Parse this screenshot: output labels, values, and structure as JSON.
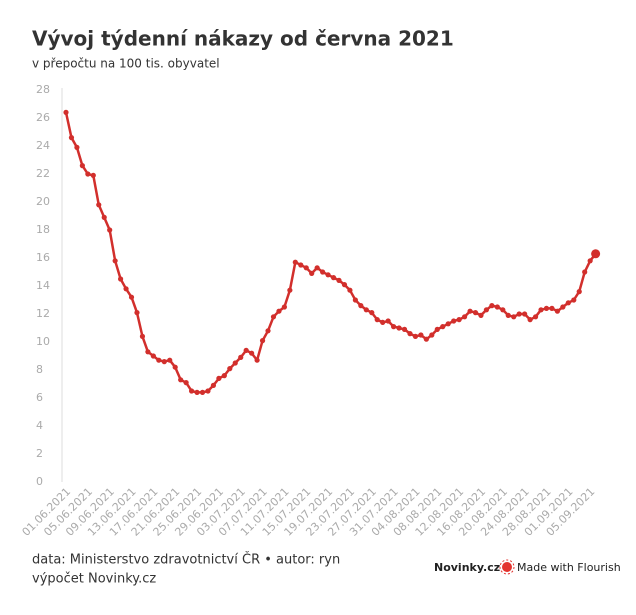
{
  "chart_data": {
    "type": "line",
    "title": "Vývoj týdenní nákazy od června 2021",
    "subtitle": "v přepočtu na 100 tis. obyvatel",
    "categories": [
      "01.06.2021",
      null,
      null,
      null,
      "05.06.2021",
      null,
      null,
      null,
      "09.06.2021",
      null,
      null,
      null,
      "13.06.2021",
      null,
      null,
      null,
      "17.06.2021",
      null,
      null,
      null,
      "21.06.2021",
      null,
      null,
      null,
      "25.06.2021",
      null,
      null,
      null,
      "29.06.2021",
      null,
      null,
      null,
      "03.07.2021",
      null,
      null,
      null,
      "07.07.2021",
      null,
      null,
      null,
      "11.07.2021",
      null,
      null,
      null,
      "15.07.2021",
      null,
      null,
      null,
      "19.07.2021",
      null,
      null,
      null,
      "23.07.2021",
      null,
      null,
      null,
      "27.07.2021",
      null,
      null,
      null,
      "31.07.2021",
      null,
      null,
      null,
      "04.08.2021",
      null,
      null,
      null,
      "08.08.2021",
      null,
      null,
      null,
      "12.08.2021",
      null,
      null,
      null,
      "16.08.2021",
      null,
      null,
      null,
      "20.08.2021",
      null,
      null,
      null,
      "24.08.2021",
      null,
      null,
      null,
      "28.08.2021",
      null,
      null,
      null,
      "01.09.2021",
      null,
      null,
      null,
      "05.09.2021",
      null
    ],
    "series": [
      {
        "name": null,
        "color": "#d22f2c",
        "values": [
          26.4,
          24.6,
          23.9,
          22.6,
          22.0,
          21.9,
          19.8,
          18.9,
          18.0,
          15.8,
          14.5,
          13.8,
          13.2,
          12.1,
          10.4,
          9.3,
          9.0,
          8.7,
          8.6,
          8.7,
          8.2,
          7.3,
          7.1,
          6.5,
          6.4,
          6.4,
          6.5,
          6.9,
          7.4,
          7.6,
          8.1,
          8.5,
          8.9,
          9.4,
          9.2,
          8.7,
          10.1,
          10.8,
          11.8,
          12.2,
          12.5,
          13.7,
          15.7,
          15.5,
          15.3,
          14.9,
          15.3,
          15.0,
          14.8,
          14.6,
          14.4,
          14.1,
          13.7,
          13.0,
          12.6,
          12.3,
          12.1,
          11.6,
          11.4,
          11.5,
          11.1,
          11.0,
          10.9,
          10.6,
          10.4,
          10.5,
          10.2,
          10.5,
          10.9,
          11.1,
          11.3,
          11.5,
          11.6,
          11.8,
          12.2,
          12.1,
          11.9,
          12.3,
          12.6,
          12.5,
          12.3,
          11.9,
          11.8,
          12.0,
          12.0,
          11.6,
          11.8,
          12.3,
          12.4,
          12.4,
          12.2,
          12.5,
          12.8,
          13.0,
          13.6,
          15.0,
          15.8,
          16.3
        ]
      }
    ],
    "ylim": [
      0,
      28
    ],
    "yticks": [
      0,
      2,
      4,
      6,
      8,
      10,
      12,
      14,
      16,
      18,
      20,
      22,
      24,
      26,
      28
    ],
    "grid": false
  },
  "footer": {
    "source": "data: Ministerstvo zdravotnictví ČR • autor: ryn",
    "note": "výpočet Novinky.cz",
    "brand": "Novinky.cz",
    "credit": "Made with Flourish"
  }
}
